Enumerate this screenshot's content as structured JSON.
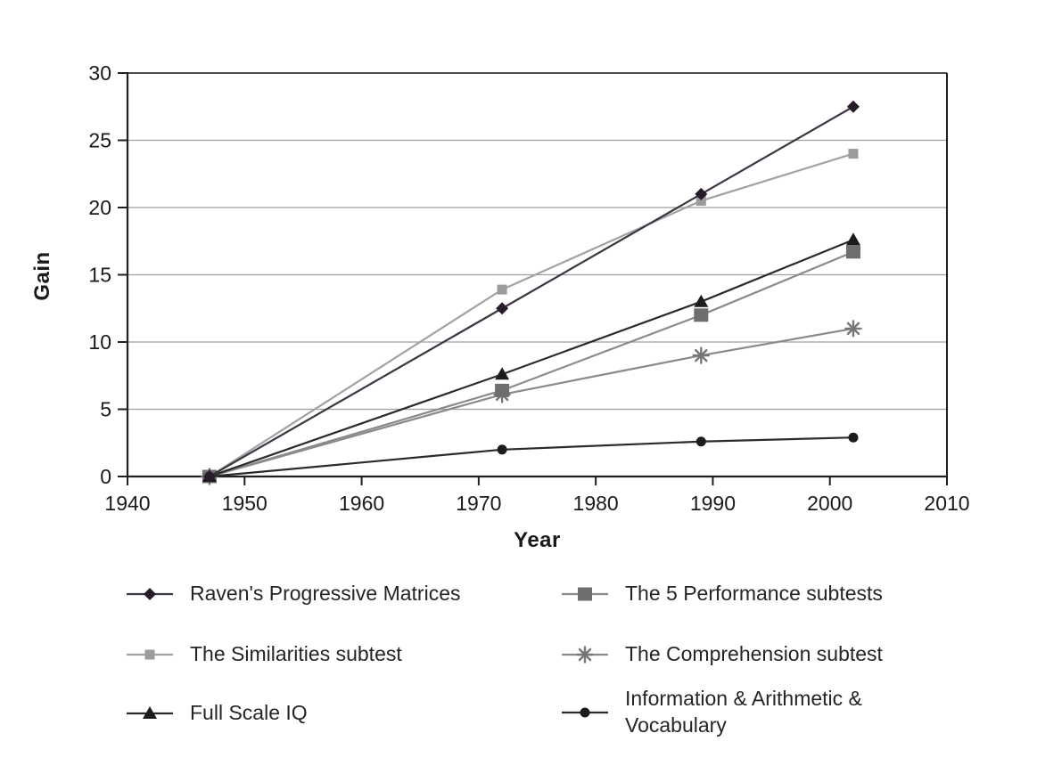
{
  "chart_data": {
    "type": "line",
    "title": "",
    "xlabel": "Year",
    "ylabel": "Gain",
    "xlim": [
      1940,
      2010
    ],
    "ylim": [
      0,
      30
    ],
    "x_ticks": [
      1940,
      1950,
      1960,
      1970,
      1980,
      1990,
      2000,
      2010
    ],
    "y_ticks": [
      0,
      5,
      10,
      15,
      20,
      25,
      30
    ],
    "grid": "horizontal",
    "legend_position": "bottom-two-columns",
    "x": [
      1947,
      1972,
      1989,
      2002
    ],
    "series": [
      {
        "name": "Raven's Progressive Matrices",
        "marker": "diamond",
        "line_color": "#3c3440",
        "marker_color": "#281c2b",
        "values": [
          0,
          12.5,
          21,
          27.5
        ]
      },
      {
        "name": "The Similarities subtest",
        "marker": "square-small",
        "line_color": "#a2a2a2",
        "marker_color": "#9b9b9b",
        "values": [
          0,
          13.9,
          20.5,
          24
        ]
      },
      {
        "name": "Full Scale IQ",
        "marker": "triangle",
        "line_color": "#2b2b2b",
        "marker_color": "#1c1c1c",
        "values": [
          0,
          7.6,
          13,
          17.6
        ]
      },
      {
        "name": "The 5 Performance subtests",
        "marker": "square-large",
        "line_color": "#8a8a8a",
        "marker_color": "#6e6e6e",
        "values": [
          0,
          6.4,
          12,
          16.7
        ]
      },
      {
        "name": "The Comprehension subtest",
        "marker": "asterisk",
        "line_color": "#8a8a8a",
        "marker_color": "#767676",
        "values": [
          0,
          6.1,
          9,
          11
        ]
      },
      {
        "name": "Information & Arithmetic & Vocabulary",
        "marker": "circle",
        "line_color": "#2b2b2b",
        "marker_color": "#1c1c1c",
        "values": [
          0,
          2,
          2.6,
          2.9
        ]
      }
    ],
    "legend_columns": [
      [
        0,
        1,
        2
      ],
      [
        3,
        4,
        5
      ]
    ],
    "colors": {
      "axis": "#1f1f1f",
      "gridline": "#9e9e9e",
      "top_border": "#4d4d4d",
      "tick_label": "#1a1a1a"
    }
  }
}
